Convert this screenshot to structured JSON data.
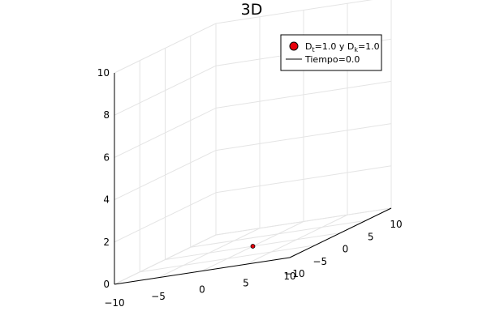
{
  "chart_data": {
    "type": "scatter",
    "title": "3D",
    "projection": "3d",
    "xlim": [
      -10,
      10
    ],
    "ylim": [
      -10,
      10
    ],
    "zlim": [
      0,
      10
    ],
    "x_ticks": [
      -10,
      -5,
      0,
      5,
      10
    ],
    "y_ticks": [
      -10,
      -5,
      0,
      5,
      10
    ],
    "z_ticks": [
      0,
      2,
      4,
      6,
      8,
      10
    ],
    "x_tick_labels": [
      "−10",
      "−5",
      "0",
      "5",
      "10"
    ],
    "y_tick_labels": [
      "−10",
      "−5",
      "0",
      "5",
      "10"
    ],
    "z_tick_labels": [
      "0",
      "2",
      "4",
      "6",
      "8",
      "10"
    ],
    "grid": true,
    "legend_position": "top-right",
    "series": [
      {
        "name": "D_t=1.0 y D_k=1.0",
        "kind": "scatter",
        "color": "#e8000b",
        "edge_color": "#000000",
        "points": [
          {
            "x": 0,
            "y": 0,
            "z": 0
          }
        ]
      },
      {
        "name": "Tiempo=0.0",
        "kind": "line",
        "color": "#000000",
        "points": []
      }
    ],
    "legend": {
      "entry1": {
        "a": "D",
        "a_sub": "t",
        "b": "=1.0 y D",
        "b_sub": "k",
        "c": "=1.0"
      },
      "entry2": "Tiempo=0.0"
    }
  }
}
